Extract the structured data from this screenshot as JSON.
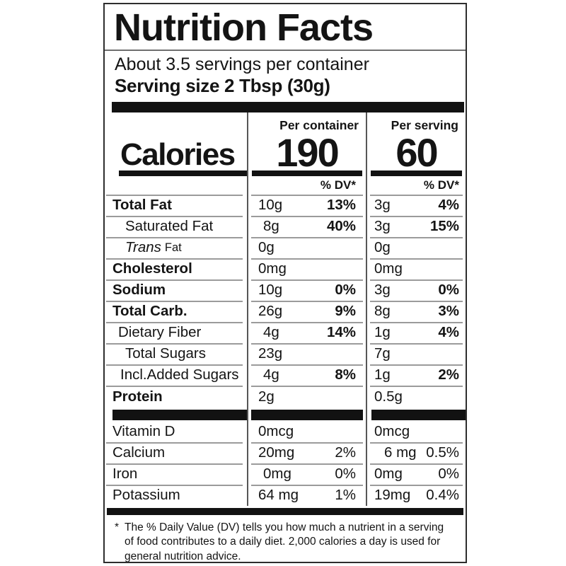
{
  "label": {
    "title": "Nutrition Facts",
    "servings_line": "About 3.5 servings per container",
    "serving_size_line": "Serving size 2 Tbsp (30g)",
    "columns": {
      "container": "Per container",
      "serving": "Per serving"
    },
    "calories": {
      "label": "Calories",
      "container": "190",
      "serving": "60"
    },
    "dv_header": "% DV*",
    "rows": [
      {
        "name": "Total Fat",
        "c_amt": "10g",
        "c_dv": "13%",
        "s_amt": "3g",
        "s_dv": "4%"
      },
      {
        "name": "Saturated Fat",
        "c_amt": "8g",
        "c_dv": "40%",
        "s_amt": "3g",
        "s_dv": "15%"
      },
      {
        "name": "Trans",
        "name_suffix": "Fat",
        "c_amt": "0g",
        "c_dv": "",
        "s_amt": "0g",
        "s_dv": ""
      },
      {
        "name": "Cholesterol",
        "c_amt": "0mg",
        "c_dv": "",
        "s_amt": "0mg",
        "s_dv": ""
      },
      {
        "name": "Sodium",
        "c_amt": "10g",
        "c_dv": "0%",
        "s_amt": "3g",
        "s_dv": "0%"
      },
      {
        "name": "Total Carb.",
        "c_amt": "26g",
        "c_dv": "9%",
        "s_amt": "8g",
        "s_dv": "3%"
      },
      {
        "name": "Dietary Fiber",
        "c_amt": "4g",
        "c_dv": "14%",
        "s_amt": "1g",
        "s_dv": "4%"
      },
      {
        "name": "Total Sugars",
        "c_amt": "23g",
        "c_dv": "",
        "s_amt": "7g",
        "s_dv": ""
      },
      {
        "name": "Incl.Added Sugars",
        "c_amt": "4g",
        "c_dv": "8%",
        "s_amt": "1g",
        "s_dv": "2%"
      },
      {
        "name": "Protein",
        "c_amt": "2g",
        "c_dv": "",
        "s_amt": "0.5g",
        "s_dv": ""
      }
    ],
    "micros": [
      {
        "name": "Vitamin D",
        "c_amt": "0mcg",
        "c_dv": "",
        "s_amt": "0mcg",
        "s_dv": ""
      },
      {
        "name": "Calcium",
        "c_amt": "20mg",
        "c_dv": "2%",
        "s_amt": "6 mg",
        "s_dv": "0.5%"
      },
      {
        "name": "Iron",
        "c_amt": "0mg",
        "c_dv": "0%",
        "s_amt": "0mg",
        "s_dv": "0%"
      },
      {
        "name": "Potassium",
        "c_amt": "64 mg",
        "c_dv": "1%",
        "s_amt": "19mg",
        "s_dv": "0.4%"
      }
    ],
    "footnote_marker": "*",
    "footnote": "The % Daily Value (DV) tells you how much a nutrient in a serving of food contributes to a daily diet. 2,000 calories a day is used for general nutrition advice.",
    "colors": {
      "ink": "#141414",
      "bars": "#121212",
      "hairline": "#9b9b9b",
      "divider": "#565656",
      "background": "#ffffff"
    }
  }
}
